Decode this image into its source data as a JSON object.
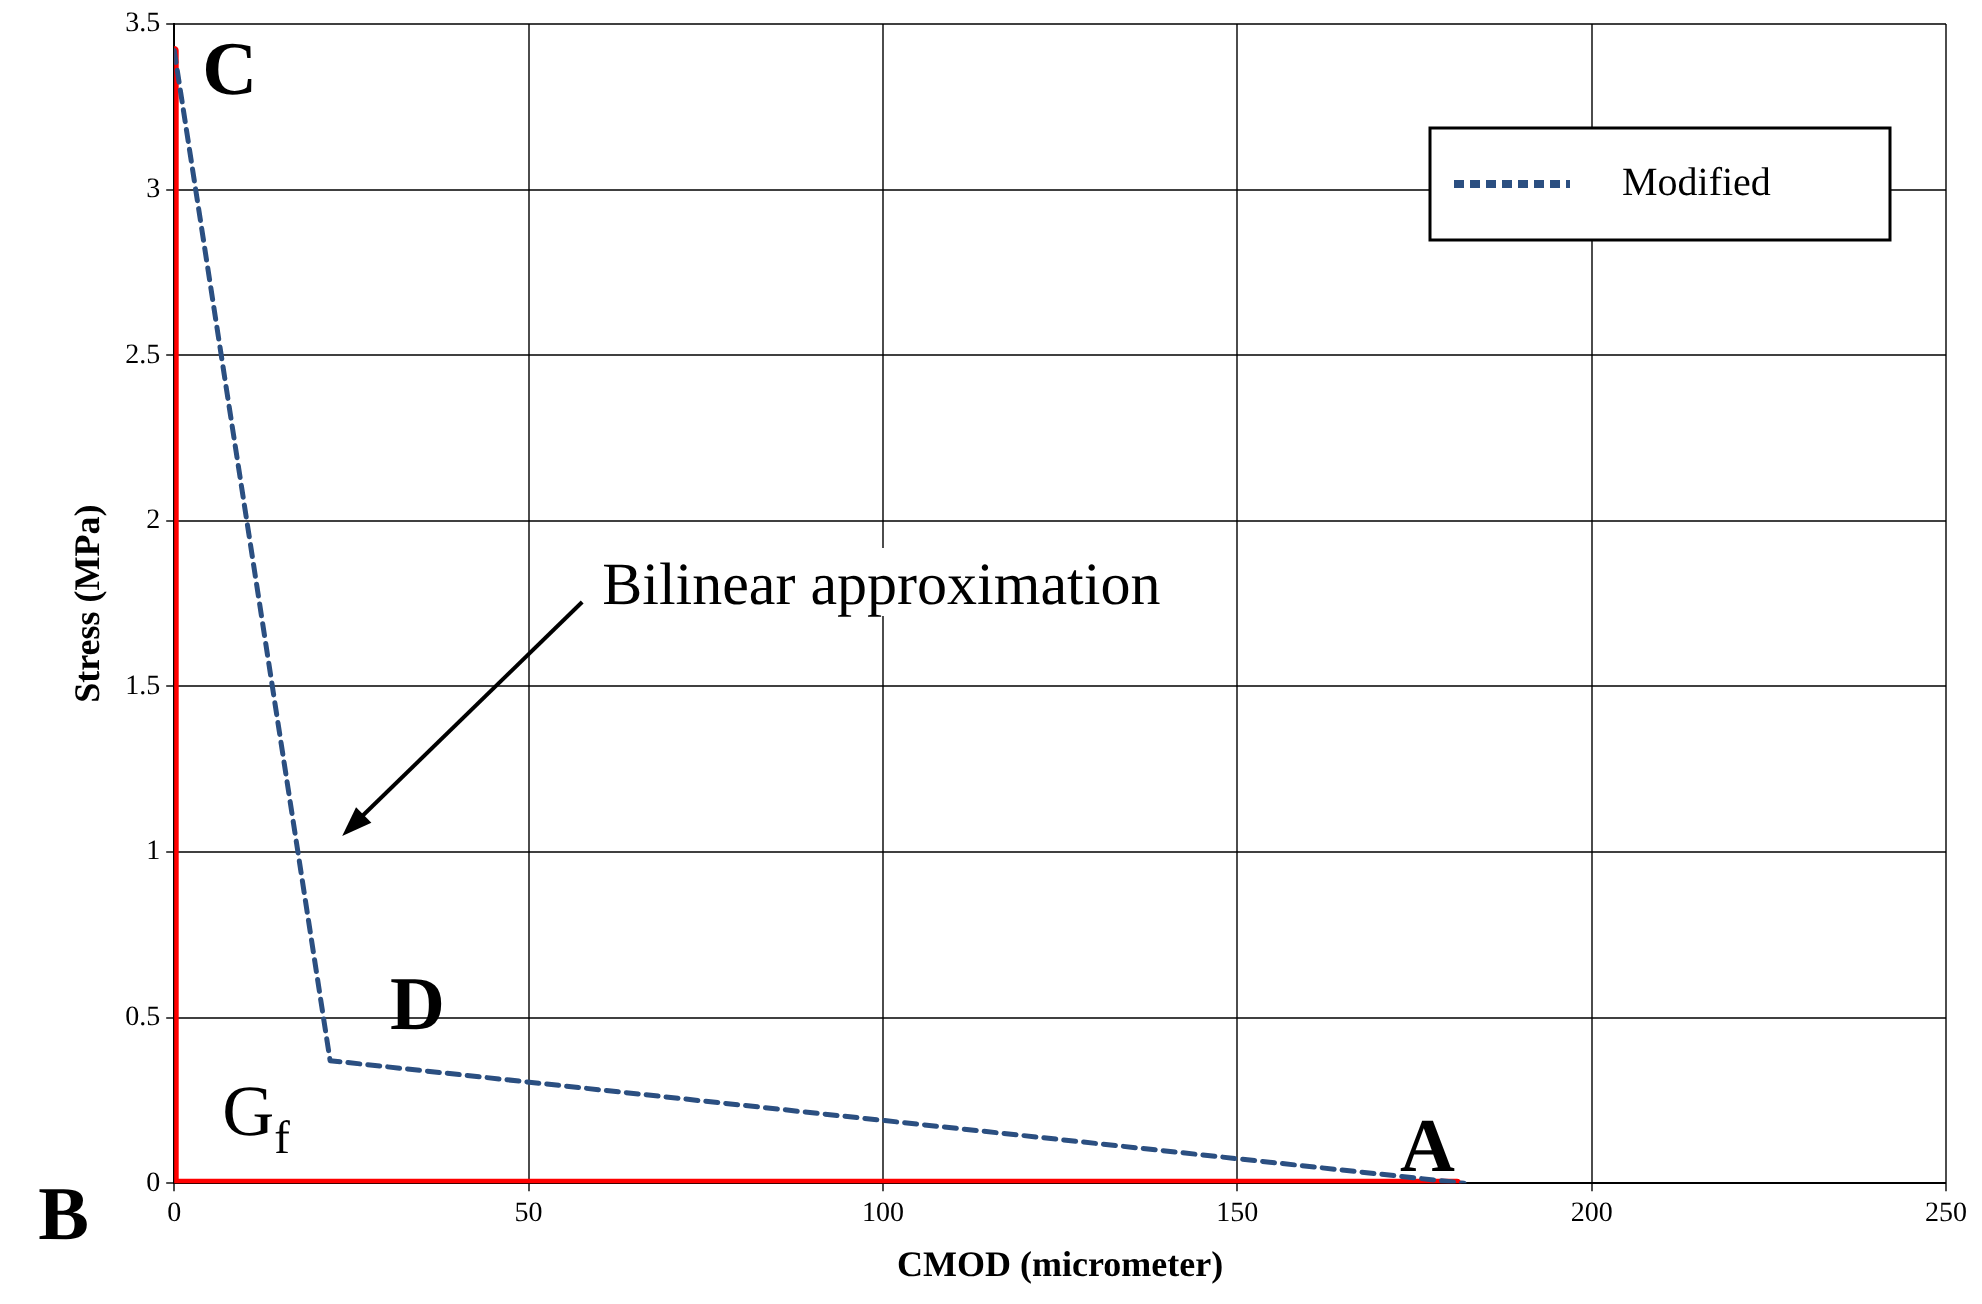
{
  "chart_data": {
    "type": "line",
    "xlabel": "CMOD (micrometer)",
    "ylabel": "Stress (MPa)",
    "xlim": [
      0,
      250
    ],
    "xticks": [
      0,
      50,
      100,
      150,
      200,
      250
    ],
    "ylim": [
      0,
      3.5
    ],
    "yticks": [
      0,
      0.5,
      1,
      1.5,
      2,
      2.5,
      3,
      3.5
    ],
    "grid": true,
    "legend": "top right",
    "marker": "none",
    "series": [
      {
        "name": "Modified",
        "color": "#2b4f81",
        "line_style": "dashed",
        "x": [
          0,
          22,
          182
        ],
        "values": [
          3.42,
          0.37,
          0
        ]
      },
      {
        "color": "#ff0000",
        "line_style": "solid",
        "x": [
          0,
          0,
          181
        ],
        "values": [
          3.42,
          0,
          0
        ]
      }
    ],
    "annotations": [
      "Bilinear approximation",
      {
        "text": "C",
        "x": 0,
        "y": 3.42
      },
      {
        "text": "D",
        "x": 22,
        "y": 0.37
      },
      {
        "text": "A",
        "x": 182,
        "y": 0
      },
      {
        "text": "B",
        "x": 0,
        "y": 0
      },
      "G$_{f}$"
    ]
  }
}
